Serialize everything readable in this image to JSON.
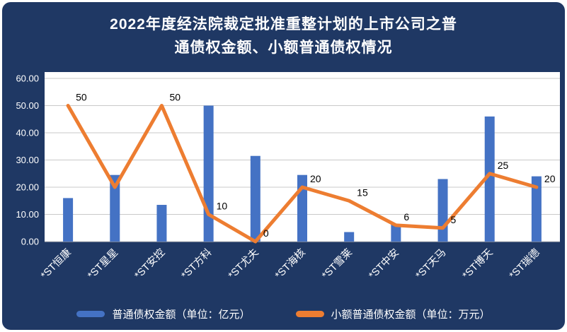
{
  "header": {
    "title_line1": "2022年度经法院裁定批准重整计划的上市公司之普",
    "title_line2": "通债权金额、小额普通债权情况"
  },
  "colors": {
    "background": "#1F3864",
    "plot_background": "#FFFFFF",
    "gridline": "#C9C9C9",
    "bar": "#4472C4",
    "line": "#ED7D31",
    "axis_text": "#FFFFFF",
    "data_label_text": "#000000"
  },
  "chart_data": {
    "type": "bar",
    "subtype": "combo-bar-line",
    "title": "2022年度经法院裁定批准重整计划的上市公司之普通债权金额、小额普通债权情况",
    "categories": [
      "*ST恒康",
      "*ST星星",
      "*ST安控",
      "*ST方科",
      "*ST尤夫",
      "*ST海核",
      "*ST雪莱",
      "*ST中安",
      "*ST天马",
      "*ST博天",
      "*ST瑞德"
    ],
    "series": [
      {
        "name": "普通债权金额（单位：亿元）",
        "type": "bar",
        "color": "#4472C4",
        "values": [
          16,
          24.5,
          13.5,
          50,
          31.5,
          24.5,
          3.5,
          6.5,
          23,
          46,
          24
        ]
      },
      {
        "name": "小额普通债权金额（单位：万元）",
        "type": "line",
        "color": "#ED7D31",
        "values": [
          50,
          20,
          50,
          10,
          0,
          20,
          15,
          6,
          5,
          25,
          20
        ],
        "labels": [
          "50",
          "",
          "50",
          "10",
          "0",
          "20",
          "15",
          "6",
          "5",
          "25",
          "20"
        ]
      }
    ],
    "xlabel": "",
    "ylabel": "",
    "ylim": [
      0,
      60
    ],
    "y_ticks": [
      "0.00",
      "10.00",
      "20.00",
      "30.00",
      "40.00",
      "50.00",
      "60.00"
    ],
    "grid": true,
    "legend_position": "bottom"
  }
}
